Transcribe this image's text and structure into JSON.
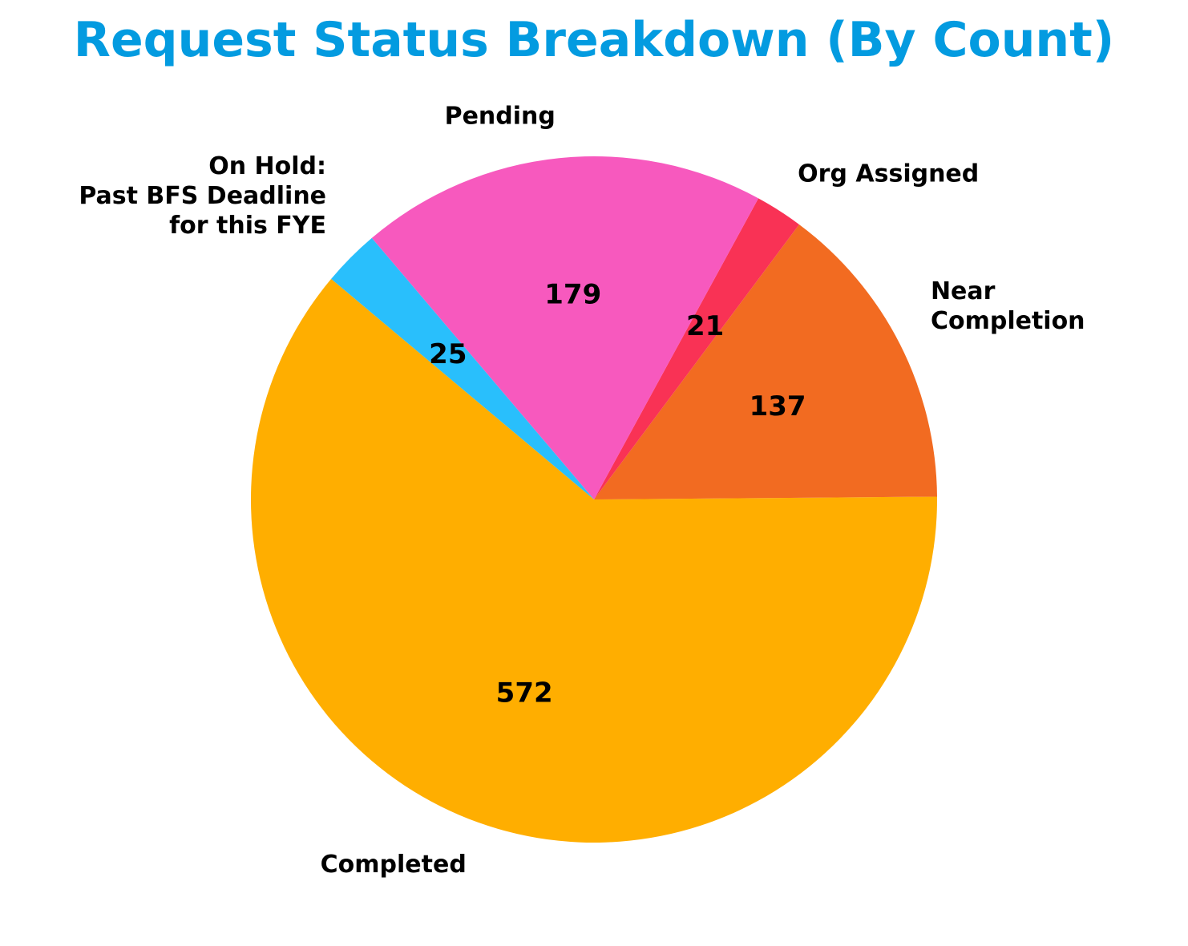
{
  "chart_data": {
    "type": "pie",
    "title": "Request Status Breakdown (By Count)",
    "slices": [
      {
        "label": "Completed",
        "value": 572,
        "color": "#FFAE00"
      },
      {
        "label": "Near Completion",
        "value": 137,
        "color": "#F26B21"
      },
      {
        "label": "Org Assigned",
        "value": 21,
        "color": "#F93255"
      },
      {
        "label": "Pending",
        "value": 179,
        "color": "#F759BE"
      },
      {
        "label": "On Hold: Past BFS Deadline for this FYE",
        "value": 25,
        "color": "#29BFFC"
      }
    ],
    "label_lines": {
      "Completed": [
        "Completed"
      ],
      "Near Completion": [
        "Near",
        "Completion"
      ],
      "Org Assigned": [
        "Org Assigned"
      ],
      "Pending": [
        "Pending"
      ],
      "On Hold: Past BFS Deadline for this FYE": [
        "On Hold:",
        "Past BFS Deadline",
        "for this FYE"
      ]
    },
    "start_angle_deg": 140,
    "direction": "counterclockwise"
  }
}
